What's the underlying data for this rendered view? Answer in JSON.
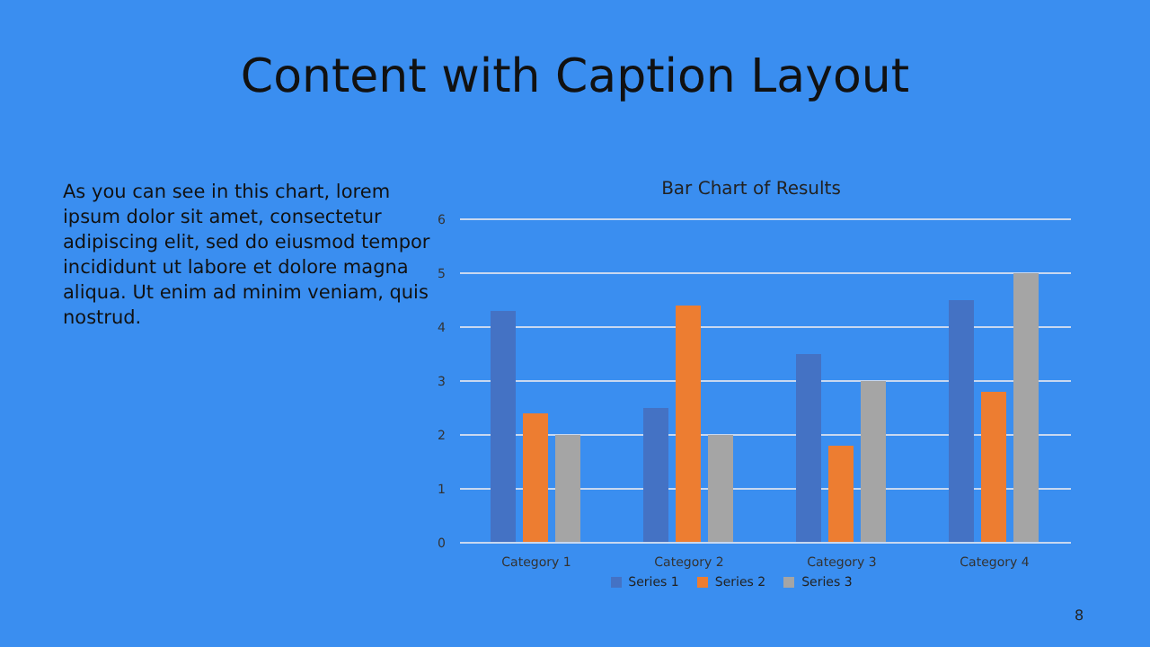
{
  "chart_data": {
    "type": "bar",
    "title": "Bar Chart of Results",
    "categories": [
      "Category 1",
      "Category 2",
      "Category 3",
      "Category 4"
    ],
    "series": [
      {
        "name": "Series 1",
        "color": "#4472c4",
        "values": [
          4.3,
          2.5,
          3.5,
          4.5
        ]
      },
      {
        "name": "Series 2",
        "color": "#ed7d31",
        "values": [
          2.4,
          4.4,
          1.8,
          2.8
        ]
      },
      {
        "name": "Series 3",
        "color": "#a5a5a5",
        "values": [
          2,
          2,
          3,
          5
        ]
      }
    ],
    "ylim": [
      0,
      6
    ],
    "yticks": [
      0,
      1,
      2,
      3,
      4,
      5,
      6
    ],
    "grid": "y",
    "legend": "bottom",
    "annotations": [
      "Content with Caption Layout",
      "As you can see in this chart, lorem ipsum dolor sit amet, consectetur adipiscing elit, sed do eiusmod tempor incididunt ut labore et dolore magna aliqua. Ut enim ad minim veniam, quis nostrud.",
      "8"
    ]
  }
}
